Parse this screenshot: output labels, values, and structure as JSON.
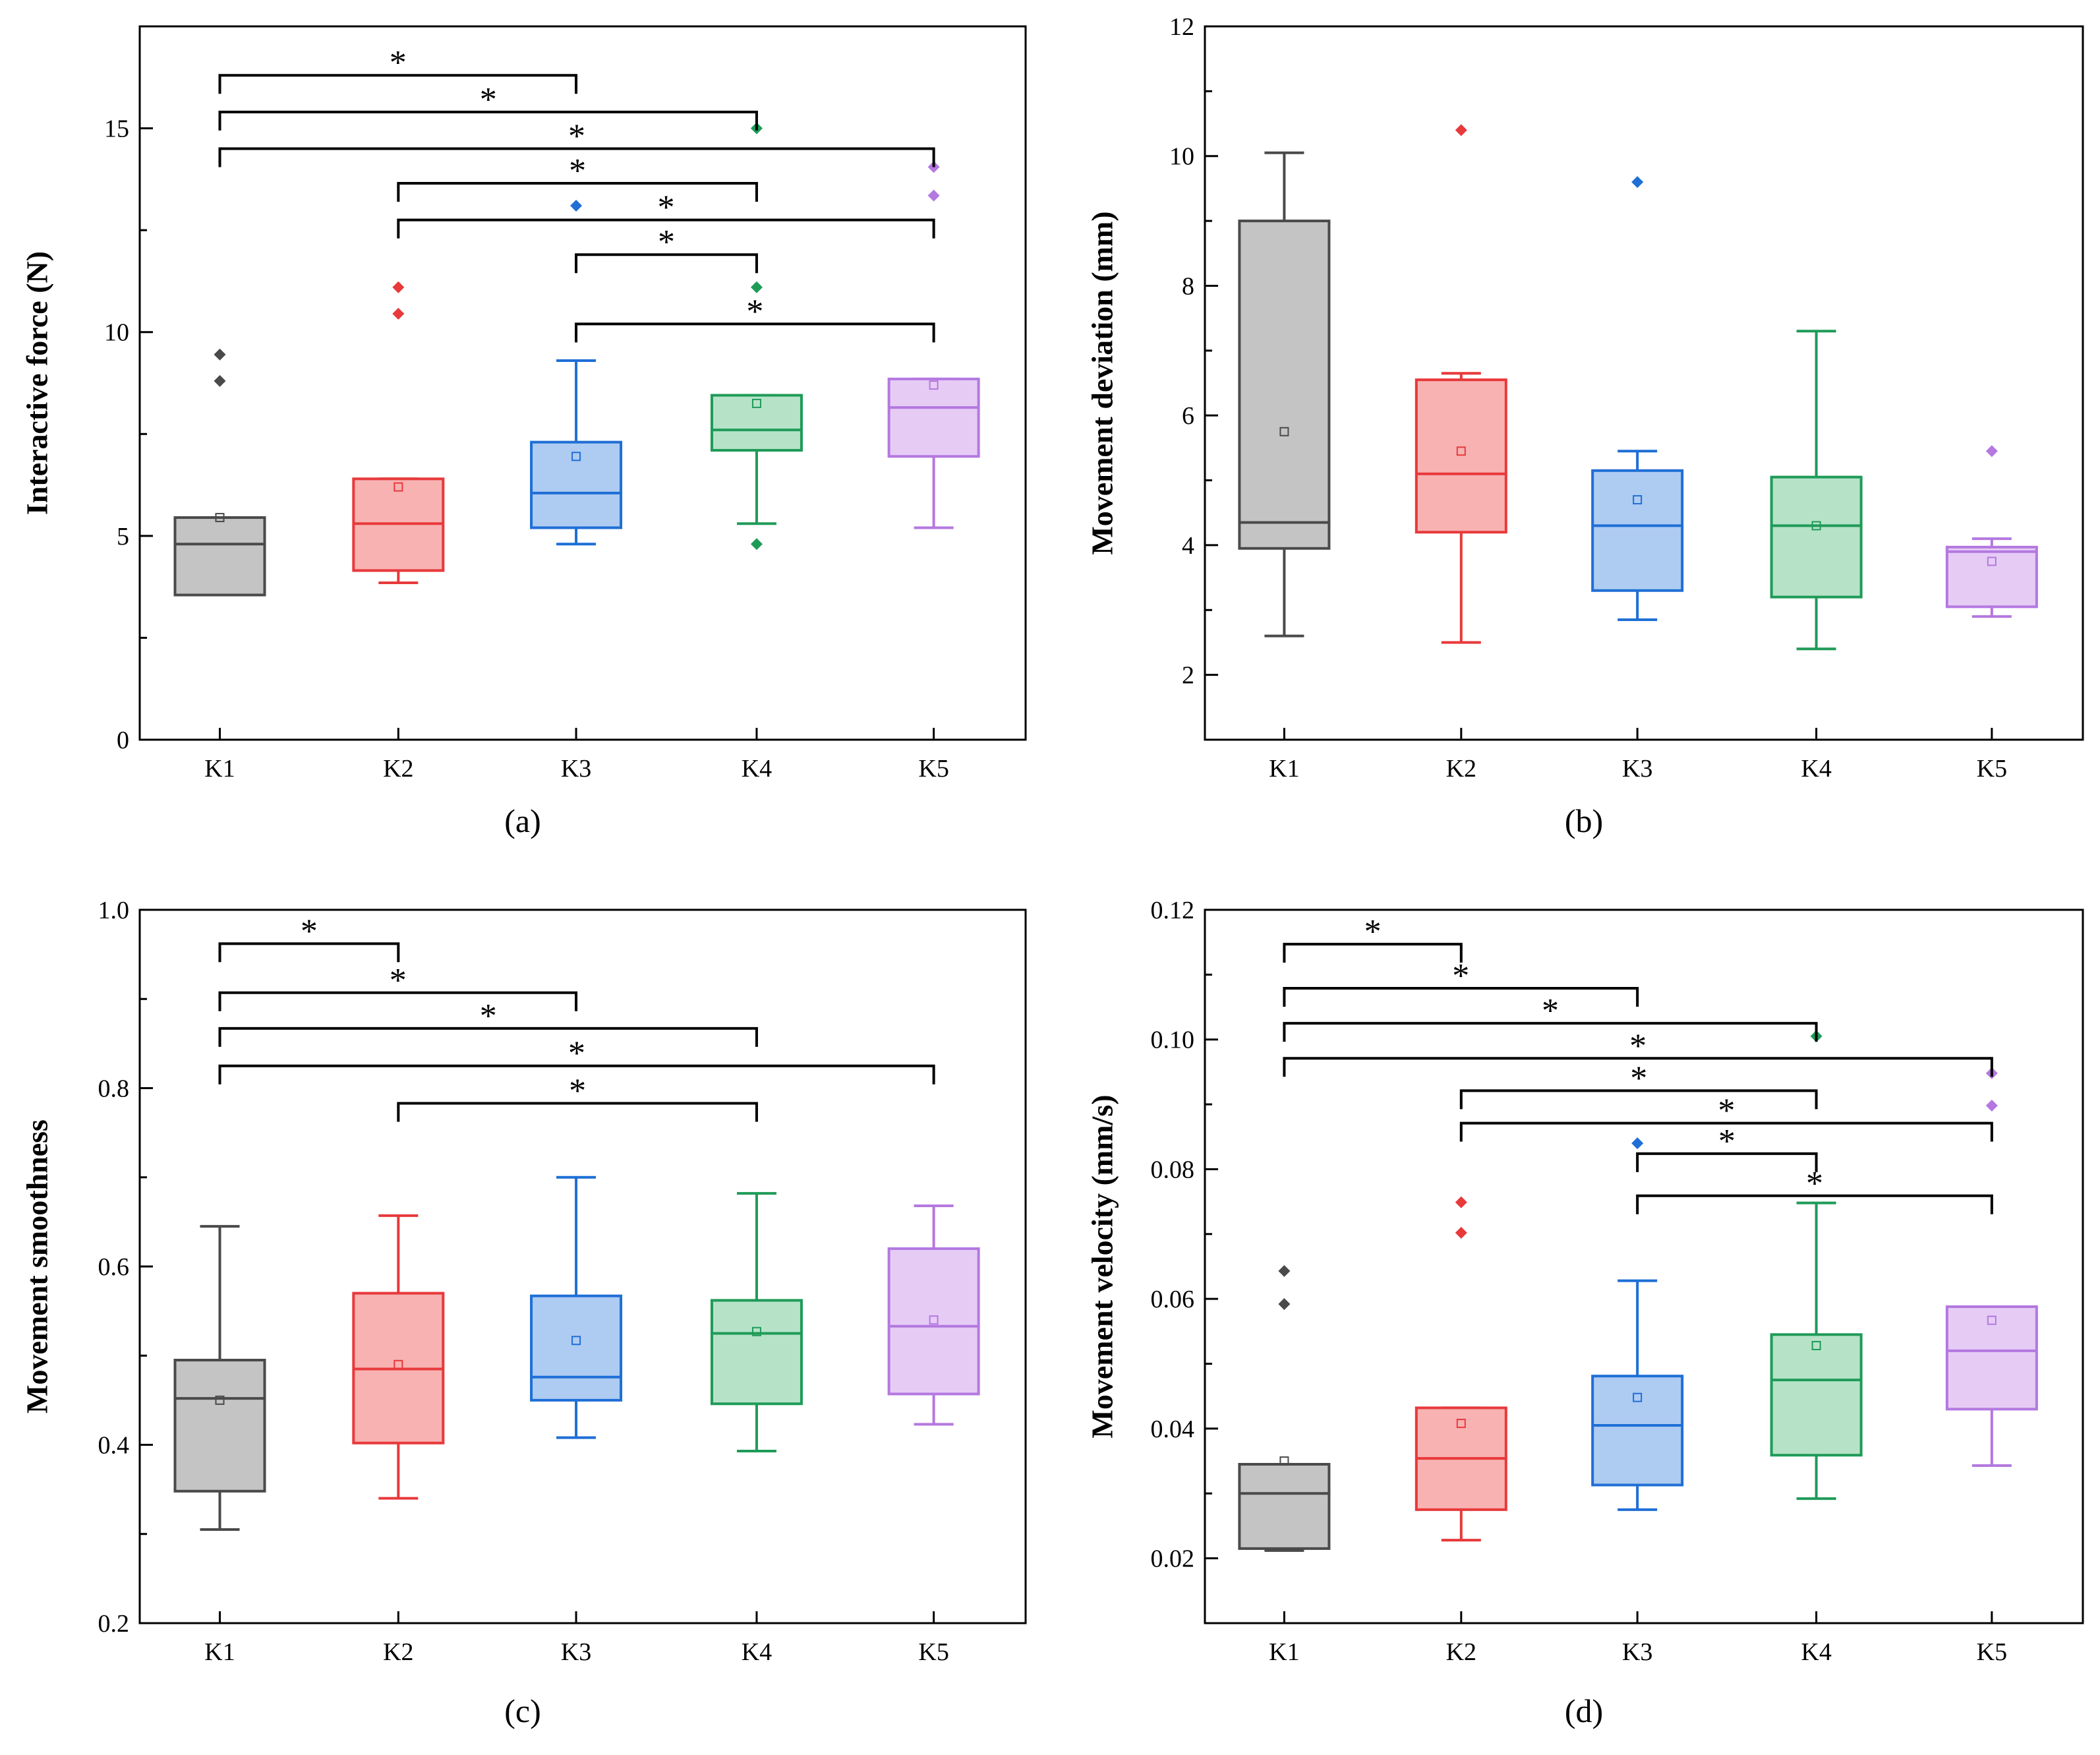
{
  "colors": {
    "K1": {
      "stroke": "#4a4a4a",
      "fill": "#c4c4c4",
      "point": "#4a4a4a"
    },
    "K2": {
      "stroke": "#e8393b",
      "fill": "#f8b2b2",
      "point": "#e8393b"
    },
    "K3": {
      "stroke": "#1f6fd6",
      "fill": "#aecbf2",
      "point": "#1f6fd6"
    },
    "K4": {
      "stroke": "#1f9b58",
      "fill": "#b6e3c8",
      "point": "#1f9b58"
    },
    "K5": {
      "stroke": "#b478e0",
      "fill": "#e6ccf5",
      "point": "#b478e0"
    }
  },
  "chart_data": [
    {
      "type": "box",
      "caption": "(a)",
      "title": "",
      "xlabel": "",
      "ylabel": "Interactive force (N)",
      "ylim": [
        0,
        17.5
      ],
      "yticks": [
        0,
        5,
        10,
        15
      ],
      "ytick_labels": [
        "0",
        "5",
        "10",
        "15"
      ],
      "minor_step": 2.5,
      "categories": [
        "K1",
        "K2",
        "K3",
        "K4",
        "K5"
      ],
      "boxes": [
        {
          "name": "K1",
          "whisker_low": 3.55,
          "q1": 3.55,
          "median": 4.8,
          "q3": 5.45,
          "whisker_high": 5.45,
          "mean": 5.45,
          "outliers": [
            8.8,
            9.45
          ]
        },
        {
          "name": "K2",
          "whisker_low": 3.85,
          "q1": 4.15,
          "median": 5.3,
          "q3": 6.4,
          "whisker_high": 6.4,
          "mean": 6.2,
          "outliers": [
            10.45,
            11.1
          ]
        },
        {
          "name": "K3",
          "whisker_low": 4.8,
          "q1": 5.2,
          "median": 6.05,
          "q3": 7.3,
          "whisker_high": 9.3,
          "mean": 6.95,
          "outliers": [
            13.1
          ]
        },
        {
          "name": "K4",
          "whisker_low": 5.3,
          "q1": 7.1,
          "median": 7.6,
          "q3": 8.45,
          "whisker_high": 8.45,
          "mean": 8.25,
          "outliers": [
            4.8,
            11.1,
            15.0
          ]
        },
        {
          "name": "K5",
          "whisker_low": 5.2,
          "q1": 6.95,
          "median": 8.15,
          "q3": 8.85,
          "whisker_high": 8.85,
          "mean": 8.7,
          "outliers": [
            13.35,
            14.05
          ]
        }
      ],
      "significance": [
        {
          "from": "K1",
          "to": "K3",
          "y": 16.3,
          "label": "*"
        },
        {
          "from": "K1",
          "to": "K4",
          "y": 15.4,
          "label": "*"
        },
        {
          "from": "K1",
          "to": "K5",
          "y": 14.5,
          "label": "*"
        },
        {
          "from": "K2",
          "to": "K4",
          "y": 13.65,
          "label": "*"
        },
        {
          "from": "K2",
          "to": "K5",
          "y": 12.75,
          "label": "*"
        },
        {
          "from": "K3",
          "to": "K4",
          "y": 11.9,
          "label": "*"
        },
        {
          "from": "K3",
          "to": "K5",
          "y": 10.2,
          "label": "*"
        }
      ]
    },
    {
      "type": "box",
      "caption": "(b)",
      "title": "",
      "xlabel": "",
      "ylabel": "Movement deviation (mm)",
      "ylim": [
        1,
        12
      ],
      "yticks": [
        2,
        4,
        6,
        8,
        10,
        12
      ],
      "ytick_labels": [
        "2",
        "4",
        "6",
        "8",
        "10",
        "12"
      ],
      "minor_step": 1,
      "categories": [
        "K1",
        "K2",
        "K3",
        "K4",
        "K5"
      ],
      "boxes": [
        {
          "name": "K1",
          "whisker_low": 2.6,
          "q1": 3.95,
          "median": 4.35,
          "q3": 9.0,
          "whisker_high": 10.05,
          "mean": 5.75,
          "outliers": []
        },
        {
          "name": "K2",
          "whisker_low": 2.5,
          "q1": 4.2,
          "median": 5.1,
          "q3": 6.55,
          "whisker_high": 6.65,
          "mean": 5.45,
          "outliers": [
            10.4
          ]
        },
        {
          "name": "K3",
          "whisker_low": 2.85,
          "q1": 3.3,
          "median": 4.3,
          "q3": 5.15,
          "whisker_high": 5.45,
          "mean": 4.7,
          "outliers": [
            9.6
          ]
        },
        {
          "name": "K4",
          "whisker_low": 2.4,
          "q1": 3.2,
          "median": 4.3,
          "q3": 5.05,
          "whisker_high": 7.3,
          "mean": 4.3,
          "outliers": []
        },
        {
          "name": "K5",
          "whisker_low": 2.9,
          "q1": 3.05,
          "median": 3.9,
          "q3": 3.97,
          "whisker_high": 4.1,
          "mean": 3.75,
          "outliers": [
            5.45
          ]
        }
      ],
      "significance": []
    },
    {
      "type": "box",
      "caption": "(c)",
      "title": "",
      "xlabel": "",
      "ylabel": "Movement smoothness",
      "ylim": [
        0.2,
        1.0
      ],
      "yticks": [
        0.2,
        0.4,
        0.6,
        0.8,
        1.0
      ],
      "ytick_labels": [
        "0.2",
        "0.4",
        "0.6",
        "0.8",
        "1.0"
      ],
      "minor_step": 0.1,
      "categories": [
        "K1",
        "K2",
        "K3",
        "K4",
        "K5"
      ],
      "boxes": [
        {
          "name": "K1",
          "whisker_low": 0.305,
          "q1": 0.348,
          "median": 0.452,
          "q3": 0.495,
          "whisker_high": 0.645,
          "mean": 0.45,
          "outliers": []
        },
        {
          "name": "K2",
          "whisker_low": 0.34,
          "q1": 0.402,
          "median": 0.485,
          "q3": 0.57,
          "whisker_high": 0.657,
          "mean": 0.49,
          "outliers": []
        },
        {
          "name": "K3",
          "whisker_low": 0.408,
          "q1": 0.45,
          "median": 0.476,
          "q3": 0.567,
          "whisker_high": 0.7,
          "mean": 0.517,
          "outliers": []
        },
        {
          "name": "K4",
          "whisker_low": 0.393,
          "q1": 0.446,
          "median": 0.525,
          "q3": 0.562,
          "whisker_high": 0.682,
          "mean": 0.527,
          "outliers": []
        },
        {
          "name": "K5",
          "whisker_low": 0.423,
          "q1": 0.457,
          "median": 0.533,
          "q3": 0.62,
          "whisker_high": 0.668,
          "mean": 0.54,
          "outliers": []
        }
      ],
      "significance": [
        {
          "from": "K1",
          "to": "K2",
          "y": 0.962,
          "label": "*"
        },
        {
          "from": "K1",
          "to": "K3",
          "y": 0.907,
          "label": "*"
        },
        {
          "from": "K1",
          "to": "K4",
          "y": 0.867,
          "label": "*"
        },
        {
          "from": "K1",
          "to": "K5",
          "y": 0.825,
          "label": "*"
        },
        {
          "from": "K2",
          "to": "K4",
          "y": 0.783,
          "label": "*"
        }
      ]
    },
    {
      "type": "box",
      "caption": "(d)",
      "title": "",
      "xlabel": "",
      "ylabel": "Movement velocity (mm/s)",
      "ylim": [
        0.01,
        0.12
      ],
      "yticks": [
        0.02,
        0.04,
        0.06,
        0.08,
        0.1,
        0.12
      ],
      "ytick_labels": [
        "0.02",
        "0.04",
        "0.06",
        "0.08",
        "0.10",
        "0.12"
      ],
      "minor_step": 0.01,
      "categories": [
        "K1",
        "K2",
        "K3",
        "K4",
        "K5"
      ],
      "boxes": [
        {
          "name": "K1",
          "whisker_low": 0.0212,
          "q1": 0.0215,
          "median": 0.03,
          "q3": 0.0345,
          "whisker_high": 0.0345,
          "mean": 0.035,
          "outliers": [
            0.0592,
            0.0643
          ]
        },
        {
          "name": "K2",
          "whisker_low": 0.0228,
          "q1": 0.0275,
          "median": 0.0354,
          "q3": 0.0432,
          "whisker_high": 0.0432,
          "mean": 0.0408,
          "outliers": [
            0.0702,
            0.0749
          ]
        },
        {
          "name": "K3",
          "whisker_low": 0.0275,
          "q1": 0.0313,
          "median": 0.0405,
          "q3": 0.0481,
          "whisker_high": 0.0628,
          "mean": 0.0448,
          "outliers": [
            0.084
          ]
        },
        {
          "name": "K4",
          "whisker_low": 0.0292,
          "q1": 0.0359,
          "median": 0.0475,
          "q3": 0.0545,
          "whisker_high": 0.0748,
          "mean": 0.0528,
          "outliers": [
            0.1005
          ]
        },
        {
          "name": "K5",
          "whisker_low": 0.0343,
          "q1": 0.043,
          "median": 0.052,
          "q3": 0.0588,
          "whisker_high": 0.0588,
          "mean": 0.0567,
          "outliers": [
            0.0898,
            0.0948
          ]
        }
      ],
      "significance": [
        {
          "from": "K1",
          "to": "K2",
          "y": 0.1147,
          "label": "*"
        },
        {
          "from": "K1",
          "to": "K3",
          "y": 0.1079,
          "label": "*"
        },
        {
          "from": "K1",
          "to": "K4",
          "y": 0.1025,
          "label": "*"
        },
        {
          "from": "K1",
          "to": "K5",
          "y": 0.0971,
          "label": "*"
        },
        {
          "from": "K2",
          "to": "K4",
          "y": 0.0921,
          "label": "*"
        },
        {
          "from": "K2",
          "to": "K5",
          "y": 0.0871,
          "label": "*"
        },
        {
          "from": "K3",
          "to": "K4",
          "y": 0.0824,
          "label": "*"
        },
        {
          "from": "K3",
          "to": "K5",
          "y": 0.0759,
          "label": "*"
        }
      ]
    }
  ]
}
